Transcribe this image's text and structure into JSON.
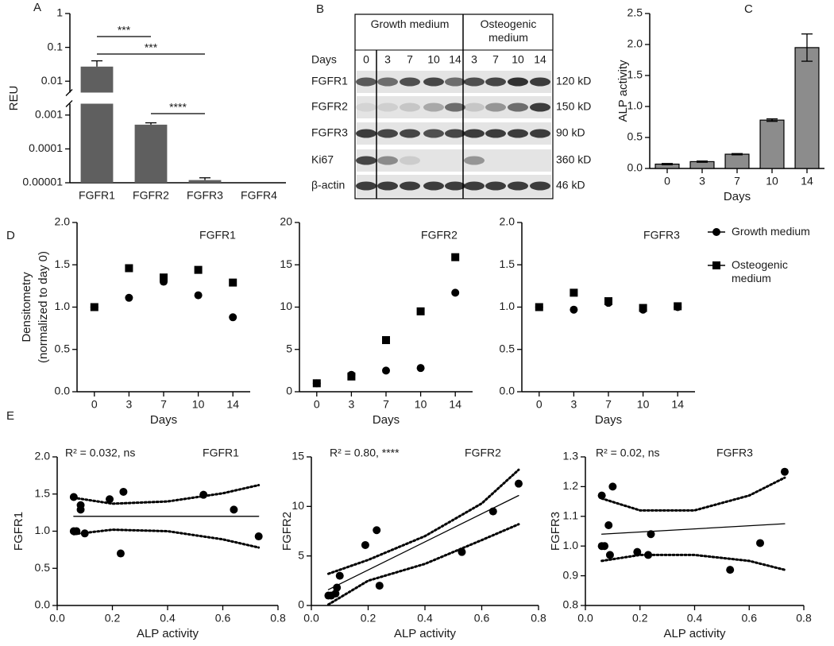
{
  "chart_data": [
    {
      "type": "bar",
      "panel_label": "A",
      "ylabel": "REU",
      "log_y": true,
      "axis_break": true,
      "categories": [
        "FGFR1",
        "FGFR2",
        "FGFR3",
        "FGFR4"
      ],
      "values": [
        0.027,
        0.00052,
        1.2e-05,
        null
      ],
      "errors": [
        0.013,
        7e-05,
        2e-06,
        null
      ],
      "error_bars": "up",
      "color": "#5f5f5f",
      "ylim": [
        1e-05,
        1
      ],
      "yticks": [
        1e-05,
        0.0001,
        0.001,
        0.01,
        0.1,
        1
      ],
      "annotations": [
        {
          "text": "***",
          "from": "FGFR1",
          "to": "FGFR2"
        },
        {
          "text": "***",
          "from": "FGFR1",
          "to": "FGFR3"
        },
        {
          "text": "****",
          "from": "FGFR2",
          "to": "FGFR3"
        }
      ]
    },
    {
      "type": "bar",
      "panel_label": "C",
      "xlabel": "Days",
      "ylabel": "ALP activity",
      "categories": [
        "0",
        "3",
        "7",
        "10",
        "14"
      ],
      "values": [
        0.07,
        0.11,
        0.23,
        0.78,
        1.95
      ],
      "errors": [
        0.01,
        0.01,
        0.01,
        0.02,
        0.22
      ],
      "error_bars": "both",
      "color": "#8c8c8c",
      "edgecolor": "#000000",
      "ylim": [
        0,
        2.5
      ],
      "yticks": [
        {
          "value": 0,
          "label": "0.0"
        },
        0.5,
        {
          "value": 1,
          "label": "1.0"
        },
        1.5,
        {
          "value": 2,
          "label": "2.0"
        },
        2.5
      ]
    },
    {
      "type": "line",
      "panel_label": "D",
      "title": "FGFR1",
      "xlabel": "Days",
      "ylabel": [
        "Densitometry",
        "(normalized to day 0)"
      ],
      "categories": [
        "0",
        "3",
        "7",
        "10",
        "14"
      ],
      "ylim": [
        0,
        2
      ],
      "yticks": [
        {
          "value": 0,
          "label": "0.0"
        },
        0.5,
        {
          "value": 1,
          "label": "1.0"
        },
        1.5,
        {
          "value": 2,
          "label": "2.0"
        }
      ],
      "series": [
        {
          "color": "#000000",
          "marker": "circle",
          "values": [
            1.0,
            1.11,
            1.3,
            1.14,
            0.88
          ]
        },
        {
          "color": "#000000",
          "marker": "square",
          "values": [
            1.0,
            1.46,
            1.35,
            1.44,
            1.29
          ]
        }
      ]
    },
    {
      "type": "line",
      "title": "FGFR2",
      "xlabel": "Days",
      "categories": [
        "0",
        "3",
        "7",
        "10",
        "14"
      ],
      "ylim": [
        0,
        20
      ],
      "yticks": [
        0,
        5,
        10,
        15,
        20
      ],
      "series": [
        {
          "color": "#000000",
          "marker": "circle",
          "values": [
            1.0,
            2.0,
            2.5,
            2.8,
            11.7
          ]
        },
        {
          "color": "#000000",
          "marker": "square",
          "values": [
            1.0,
            1.8,
            6.1,
            9.5,
            15.9
          ]
        }
      ]
    },
    {
      "type": "line",
      "title": "FGFR3",
      "xlabel": "Days",
      "legend": "right",
      "categories": [
        "0",
        "3",
        "7",
        "10",
        "14"
      ],
      "ylim": [
        0,
        2
      ],
      "yticks": [
        {
          "value": 0,
          "label": "0.0"
        },
        0.5,
        {
          "value": 1,
          "label": "1.0"
        },
        1.5,
        {
          "value": 2,
          "label": "2.0"
        }
      ],
      "series": [
        {
          "name": "Growth medium",
          "color": "#000000",
          "marker": "circle",
          "values": [
            1.0,
            0.97,
            1.05,
            0.97,
            1.0
          ]
        },
        {
          "name": "Osteogenic medium",
          "color": "#000000",
          "marker": "square",
          "values": [
            1.0,
            1.17,
            1.07,
            0.99,
            1.01
          ]
        }
      ]
    },
    {
      "type": "scatter",
      "panel_label": "E",
      "title": "FGFR1",
      "stat_label": "R² = 0.032, ns",
      "xlabel": "ALP activity",
      "ylabel": "FGFR1",
      "color": "#000000",
      "xlim": [
        0,
        0.8
      ],
      "xticks": [
        {
          "value": 0,
          "label": "0.0"
        },
        0.2,
        0.4,
        0.6,
        0.8
      ],
      "ylim": [
        0,
        2
      ],
      "yticks": [
        {
          "value": 0,
          "label": "0.0"
        },
        0.5,
        {
          "value": 1,
          "label": "1.0"
        },
        1.5,
        {
          "value": 2,
          "label": "2.0"
        }
      ],
      "x": [
        0.06,
        0.07,
        0.06,
        0.085,
        0.085,
        0.1,
        0.19,
        0.23,
        0.24,
        0.53,
        0.64,
        0.73
      ],
      "y": [
        1.46,
        1.0,
        1.0,
        1.35,
        1.29,
        0.97,
        1.43,
        0.7,
        1.53,
        1.49,
        1.29,
        0.93
      ],
      "fit": {
        "x": [
          0.06,
          0.73
        ],
        "y": [
          1.2,
          1.2
        ]
      },
      "ci_upper": {
        "x": [
          0.06,
          0.2,
          0.4,
          0.6,
          0.73
        ],
        "y": [
          1.45,
          1.37,
          1.4,
          1.51,
          1.62
        ]
      },
      "ci_lower": {
        "x": [
          0.06,
          0.2,
          0.4,
          0.6,
          0.73
        ],
        "y": [
          0.96,
          1.02,
          1.0,
          0.89,
          0.78
        ]
      }
    },
    {
      "type": "scatter",
      "title": "FGFR2",
      "stat_label": "R² = 0.80, ****",
      "xlabel": "ALP activity",
      "ylabel": "FGFR2",
      "color": "#000000",
      "xlim": [
        0,
        0.8
      ],
      "xticks": [
        {
          "value": 0,
          "label": "0.0"
        },
        0.2,
        0.4,
        0.6,
        0.8
      ],
      "ylim": [
        0,
        15
      ],
      "yticks": [
        0,
        5,
        10,
        15
      ],
      "x": [
        0.06,
        0.07,
        0.085,
        0.09,
        0.1,
        0.19,
        0.23,
        0.24,
        0.53,
        0.64,
        0.73
      ],
      "y": [
        1.0,
        1.0,
        1.2,
        1.8,
        3.0,
        6.1,
        7.6,
        2.0,
        5.4,
        9.5,
        12.3
      ],
      "fit": {
        "x": [
          0.06,
          0.73
        ],
        "y": [
          1.6,
          11.1
        ]
      },
      "ci_upper": {
        "x": [
          0.06,
          0.2,
          0.4,
          0.6,
          0.73
        ],
        "y": [
          3.2,
          4.6,
          7.0,
          10.3,
          13.7
        ]
      },
      "ci_lower": {
        "x": [
          0.06,
          0.2,
          0.4,
          0.6,
          0.73
        ],
        "y": [
          0.1,
          2.5,
          4.2,
          6.6,
          8.2
        ]
      }
    },
    {
      "type": "scatter",
      "title": "FGFR3",
      "stat_label": "R² = 0.02, ns",
      "xlabel": "ALP activity",
      "ylabel": "FGFR3",
      "color": "#000000",
      "xlim": [
        0,
        0.8
      ],
      "xticks": [
        {
          "value": 0,
          "label": "0.0"
        },
        0.2,
        0.4,
        0.6,
        0.8
      ],
      "ylim": [
        0.8,
        1.3
      ],
      "yticks": [
        0.8,
        0.9,
        {
          "value": 1,
          "label": "1.0"
        },
        1.1,
        1.2,
        1.3
      ],
      "x": [
        0.06,
        0.06,
        0.07,
        0.085,
        0.09,
        0.1,
        0.19,
        0.23,
        0.24,
        0.53,
        0.64,
        0.73
      ],
      "y": [
        1.17,
        1.0,
        1.0,
        1.07,
        0.97,
        1.2,
        0.98,
        0.97,
        1.04,
        0.92,
        1.01,
        1.25
      ],
      "fit": {
        "x": [
          0.06,
          0.73
        ],
        "y": [
          1.04,
          1.075
        ]
      },
      "ci_upper": {
        "x": [
          0.06,
          0.2,
          0.4,
          0.6,
          0.73
        ],
        "y": [
          1.16,
          1.12,
          1.12,
          1.17,
          1.23
        ]
      },
      "ci_lower": {
        "x": [
          0.06,
          0.2,
          0.4,
          0.6,
          0.73
        ],
        "y": [
          0.95,
          0.97,
          0.97,
          0.95,
          0.92
        ]
      }
    }
  ],
  "blot": {
    "panel_label": "B",
    "groups": [
      "Growth medium",
      "Osteogenic medium"
    ],
    "days_label": "Days",
    "days": [
      "0",
      "3",
      "7",
      "10",
      "14",
      "3",
      "7",
      "10",
      "14"
    ],
    "rows": [
      {
        "name": "FGFR1",
        "size": "120 kD"
      },
      {
        "name": "FGFR2",
        "size": "150 kD"
      },
      {
        "name": "FGFR3",
        "size": "90 kD"
      },
      {
        "name": "Ki67",
        "size": "360 kD"
      },
      {
        "name": "β-actin",
        "size": "46 kD"
      }
    ]
  }
}
